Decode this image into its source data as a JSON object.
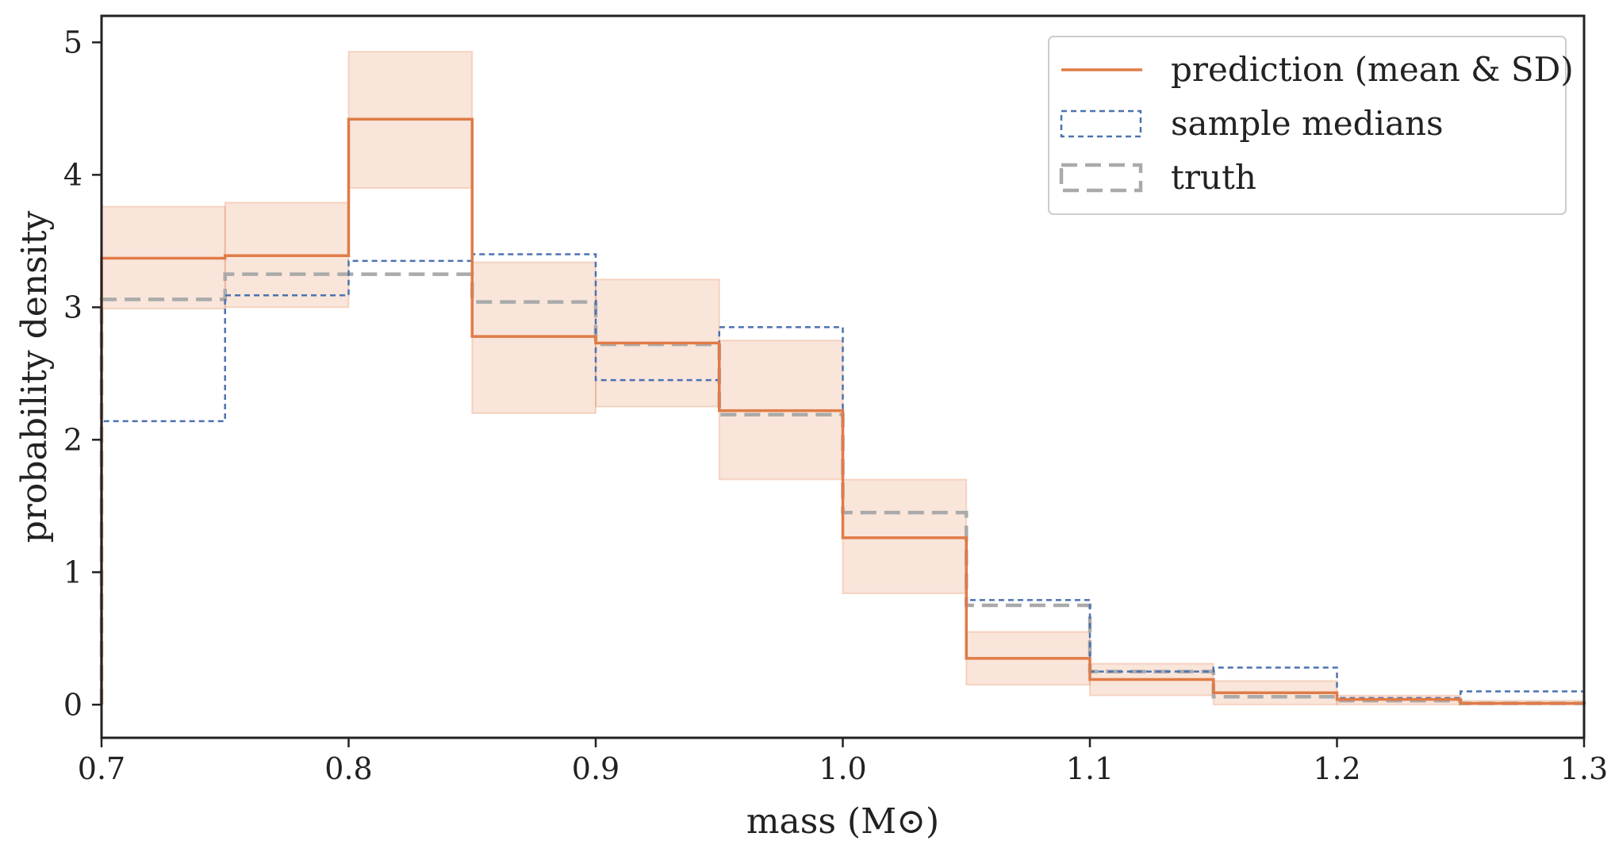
{
  "chart_data": {
    "type": "histogram-step",
    "xlabel": "mass (M⊙)",
    "ylabel": "probability density",
    "xlim": [
      0.7,
      1.3
    ],
    "ylim": [
      -0.25,
      5.2
    ],
    "xticks": [
      0.7,
      0.8,
      0.9,
      1.0,
      1.1,
      1.2,
      1.3
    ],
    "xtick_labels": [
      "0.7",
      "0.8",
      "0.9",
      "1.0",
      "1.1",
      "1.2",
      "1.3"
    ],
    "yticks": [
      0,
      1,
      2,
      3,
      4,
      5
    ],
    "ytick_labels": [
      "0",
      "1",
      "2",
      "3",
      "4",
      "5"
    ],
    "bin_edges": [
      0.7,
      0.75,
      0.8,
      0.85,
      0.9,
      0.95,
      1.0,
      1.05,
      1.1,
      1.15,
      1.2,
      1.25,
      1.3
    ],
    "series": [
      {
        "name": "prediction (mean & SD)",
        "style": "solid",
        "color": "#e07b47",
        "values": [
          3.37,
          3.39,
          4.42,
          2.78,
          2.73,
          2.22,
          1.26,
          0.35,
          0.19,
          0.09,
          0.04,
          0.01
        ],
        "sd_lower": [
          2.99,
          3.0,
          3.9,
          2.2,
          2.25,
          1.7,
          0.84,
          0.15,
          0.07,
          0.0,
          0.0,
          0.0
        ],
        "sd_upper": [
          3.76,
          3.79,
          4.93,
          3.34,
          3.21,
          2.75,
          1.7,
          0.55,
          0.31,
          0.18,
          0.07,
          0.03
        ]
      },
      {
        "name": "sample medians",
        "style": "dotted",
        "color": "#4c72b0",
        "values": [
          2.14,
          3.09,
          3.35,
          3.4,
          2.45,
          2.85,
          1.26,
          0.79,
          0.25,
          0.28,
          0.05,
          0.1
        ]
      },
      {
        "name": "truth",
        "style": "dashed",
        "color": "#aaaaaa",
        "values": [
          3.06,
          3.25,
          3.25,
          3.04,
          2.72,
          2.19,
          1.45,
          0.75,
          0.25,
          0.06,
          0.03,
          0.01
        ]
      }
    ],
    "legend": {
      "position": "top-right",
      "entries": [
        "prediction (mean & SD)",
        "sample medians",
        "truth"
      ]
    },
    "grid": false
  }
}
